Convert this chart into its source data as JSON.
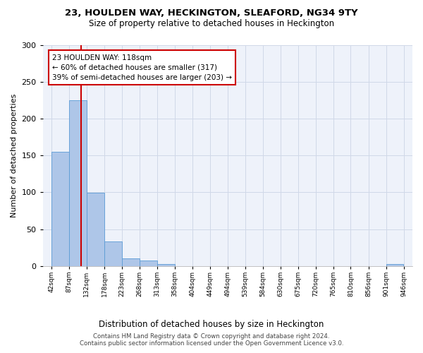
{
  "title": "23, HOULDEN WAY, HECKINGTON, SLEAFORD, NG34 9TY",
  "subtitle": "Size of property relative to detached houses in Heckington",
  "xlabel": "Distribution of detached houses by size in Heckington",
  "ylabel": "Number of detached properties",
  "bins": [
    42,
    87,
    132,
    178,
    223,
    268,
    313,
    358,
    404,
    449,
    494,
    539,
    584,
    630,
    675,
    720,
    765,
    810,
    856,
    901,
    946
  ],
  "counts": [
    155,
    225,
    99,
    33,
    10,
    7,
    3,
    0,
    0,
    0,
    0,
    0,
    0,
    0,
    0,
    0,
    0,
    0,
    0,
    3
  ],
  "bar_color": "#aec6e8",
  "bar_edge_color": "#5b9bd5",
  "subject_size": 118,
  "vline_color": "#cc0000",
  "annotation_text": "23 HOULDEN WAY: 118sqm\n← 60% of detached houses are smaller (317)\n39% of semi-detached houses are larger (203) →",
  "annotation_box_color": "white",
  "annotation_box_edge_color": "#cc0000",
  "ylim": [
    0,
    300
  ],
  "yticks": [
    0,
    50,
    100,
    150,
    200,
    250,
    300
  ],
  "footer_line1": "Contains HM Land Registry data © Crown copyright and database right 2024.",
  "footer_line2": "Contains public sector information licensed under the Open Government Licence v3.0.",
  "grid_color": "#d0d8e8",
  "background_color": "#eef2fa"
}
